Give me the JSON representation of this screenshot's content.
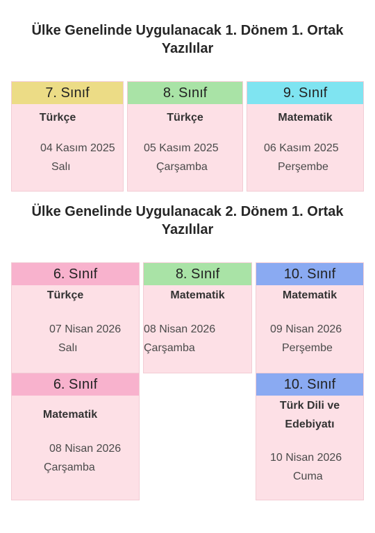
{
  "section1": {
    "title": "Ülke Genelinde Uygulanacak 1. Dönem 1. Ortak Yazılılar",
    "cards": [
      {
        "grade": "7. Sınıf",
        "subject": "Türkçe",
        "date": "04 Kasım 2025",
        "day": "Salı",
        "header_color": "#ecdc86"
      },
      {
        "grade": "8. Sınıf",
        "subject": "Türkçe",
        "date": "05 Kasım 2025",
        "day": "Çarşamba",
        "header_color": "#a9e3a6"
      },
      {
        "grade": "9. Sınıf",
        "subject": "Matematik",
        "date": "06 Kasım 2025",
        "day": "Perşembe",
        "header_color": "#7fe4f1"
      }
    ]
  },
  "section2": {
    "title": "Ülke Genelinde Uygulanacak 2. Dönem 1. Ortak Yazılılar",
    "cards": [
      {
        "grade": "6. Sınıf",
        "subject": "Türkçe",
        "date": "07 Nisan 2026",
        "day": "Salı",
        "header_color": "#f8b2cd"
      },
      {
        "grade": "8. Sınıf",
        "subject": "Matematik",
        "date": "08 Nisan 2026",
        "day": "Çarşamba",
        "header_color": "#a9e3a6"
      },
      {
        "grade": "10. Sınıf",
        "subject": "Matematik",
        "date": "09 Nisan 2026",
        "day": "Perşembe",
        "header_color": "#8aaaf2"
      },
      {
        "grade": "6. Sınıf",
        "subject": "Matematik",
        "date": "08 Nisan 2026",
        "day": "Çarşamba",
        "header_color": "#f8b2cd"
      },
      {
        "grade": "10. Sınıf",
        "subject_line1": "Türk Dili ve",
        "subject_line2": "Edebiyatı",
        "date": "10 Nisan 2026",
        "day": "Cuma",
        "header_color": "#8aaaf2"
      }
    ]
  }
}
